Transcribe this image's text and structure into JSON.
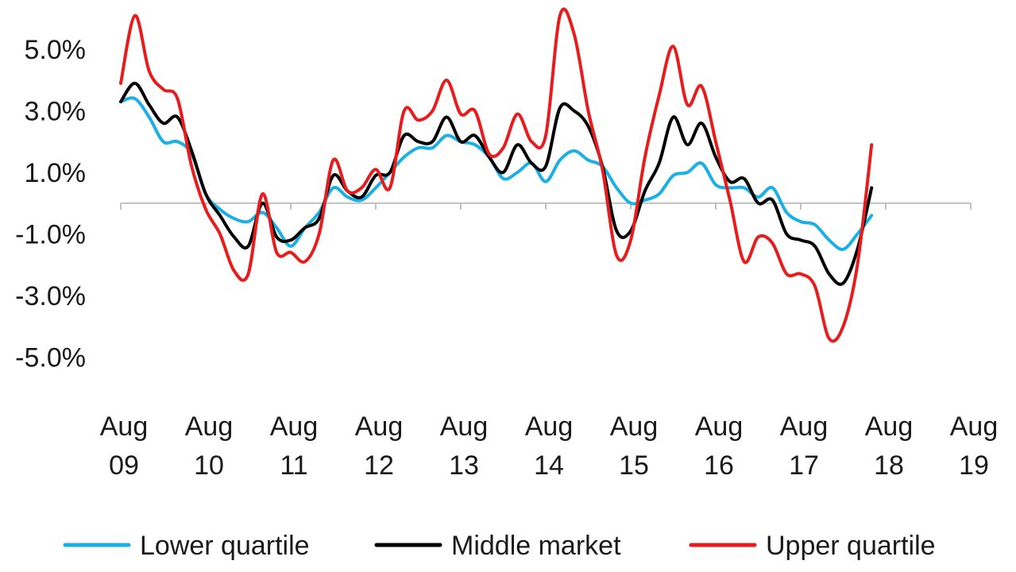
{
  "chart_data": {
    "type": "line",
    "title": "",
    "xlabel": "",
    "ylabel": "",
    "ylim": [
      -6.0,
      6.4
    ],
    "y_ticks": [
      "5.0%",
      "3.0%",
      "1.0%",
      "-1.0%",
      "-3.0%",
      "-5.0%"
    ],
    "y_tick_values": [
      5.0,
      3.0,
      1.0,
      -1.0,
      -3.0,
      -5.0
    ],
    "x_ticks": [
      {
        "line1": "Aug",
        "line2": "09",
        "value": 2009.583
      },
      {
        "line1": "Aug",
        "line2": "10",
        "value": 2010.583
      },
      {
        "line1": "Aug",
        "line2": "11",
        "value": 2011.583
      },
      {
        "line1": "Aug",
        "line2": "12",
        "value": 2012.583
      },
      {
        "line1": "Aug",
        "line2": "13",
        "value": 2013.583
      },
      {
        "line1": "Aug",
        "line2": "14",
        "value": 2014.583
      },
      {
        "line1": "Aug",
        "line2": "15",
        "value": 2015.583
      },
      {
        "line1": "Aug",
        "line2": "16",
        "value": 2016.583
      },
      {
        "line1": "Aug",
        "line2": "17",
        "value": 2017.583
      },
      {
        "line1": "Aug",
        "line2": "18",
        "value": 2018.583
      },
      {
        "line1": "Aug",
        "line2": "19",
        "value": 2019.583
      }
    ],
    "xlim": [
      2009.583,
      2019.583
    ],
    "grid": false,
    "zero_line": true,
    "legend_placement": "bottom",
    "series": [
      {
        "name": "Lower quartile",
        "color": "#1ab0e6",
        "points": [
          [
            2009.583,
            3.3
          ],
          [
            2009.75,
            3.4
          ],
          [
            2009.917,
            2.8
          ],
          [
            2010.083,
            2.0
          ],
          [
            2010.25,
            2.0
          ],
          [
            2010.417,
            1.6
          ],
          [
            2010.583,
            0.3
          ],
          [
            2010.75,
            -0.2
          ],
          [
            2010.917,
            -0.5
          ],
          [
            2011.083,
            -0.6
          ],
          [
            2011.25,
            -0.3
          ],
          [
            2011.417,
            -0.8
          ],
          [
            2011.583,
            -1.4
          ],
          [
            2011.75,
            -0.8
          ],
          [
            2011.917,
            -0.3
          ],
          [
            2012.083,
            0.5
          ],
          [
            2012.25,
            0.2
          ],
          [
            2012.417,
            0.1
          ],
          [
            2012.583,
            0.5
          ],
          [
            2012.75,
            1.0
          ],
          [
            2012.917,
            1.5
          ],
          [
            2013.083,
            1.8
          ],
          [
            2013.25,
            1.8
          ],
          [
            2013.417,
            2.2
          ],
          [
            2013.583,
            2.0
          ],
          [
            2013.75,
            1.9
          ],
          [
            2013.917,
            1.5
          ],
          [
            2014.083,
            0.8
          ],
          [
            2014.25,
            1.0
          ],
          [
            2014.417,
            1.3
          ],
          [
            2014.583,
            0.7
          ],
          [
            2014.75,
            1.4
          ],
          [
            2014.917,
            1.7
          ],
          [
            2015.083,
            1.4
          ],
          [
            2015.25,
            1.2
          ],
          [
            2015.417,
            0.5
          ],
          [
            2015.583,
            0.0
          ],
          [
            2015.75,
            0.1
          ],
          [
            2015.917,
            0.3
          ],
          [
            2016.083,
            0.9
          ],
          [
            2016.25,
            1.0
          ],
          [
            2016.417,
            1.3
          ],
          [
            2016.583,
            0.6
          ],
          [
            2016.75,
            0.5
          ],
          [
            2016.917,
            0.5
          ],
          [
            2017.083,
            0.2
          ],
          [
            2017.25,
            0.5
          ],
          [
            2017.417,
            -0.3
          ],
          [
            2017.583,
            -0.6
          ],
          [
            2017.75,
            -0.7
          ],
          [
            2017.917,
            -1.2
          ],
          [
            2018.083,
            -1.5
          ],
          [
            2018.25,
            -1.0
          ],
          [
            2018.417,
            -0.4
          ]
        ]
      },
      {
        "name": "Middle market",
        "color": "#000000",
        "points": [
          [
            2009.583,
            3.3
          ],
          [
            2009.75,
            3.9
          ],
          [
            2009.917,
            3.2
          ],
          [
            2010.083,
            2.6
          ],
          [
            2010.25,
            2.8
          ],
          [
            2010.417,
            1.7
          ],
          [
            2010.583,
            0.3
          ],
          [
            2010.75,
            -0.4
          ],
          [
            2010.917,
            -1.1
          ],
          [
            2011.083,
            -1.4
          ],
          [
            2011.25,
            0.0
          ],
          [
            2011.417,
            -1.1
          ],
          [
            2011.583,
            -1.2
          ],
          [
            2011.75,
            -0.8
          ],
          [
            2011.917,
            -0.5
          ],
          [
            2012.083,
            0.9
          ],
          [
            2012.25,
            0.4
          ],
          [
            2012.417,
            0.2
          ],
          [
            2012.583,
            0.9
          ],
          [
            2012.75,
            1.0
          ],
          [
            2012.917,
            2.2
          ],
          [
            2013.083,
            2.0
          ],
          [
            2013.25,
            2.0
          ],
          [
            2013.417,
            2.8
          ],
          [
            2013.583,
            2.0
          ],
          [
            2013.75,
            2.2
          ],
          [
            2013.917,
            1.5
          ],
          [
            2014.083,
            1.0
          ],
          [
            2014.25,
            1.9
          ],
          [
            2014.417,
            1.3
          ],
          [
            2014.583,
            1.2
          ],
          [
            2014.75,
            3.1
          ],
          [
            2014.917,
            3.0
          ],
          [
            2015.083,
            2.5
          ],
          [
            2015.25,
            1.2
          ],
          [
            2015.417,
            -0.9
          ],
          [
            2015.583,
            -0.9
          ],
          [
            2015.75,
            0.4
          ],
          [
            2015.917,
            1.3
          ],
          [
            2016.083,
            2.8
          ],
          [
            2016.25,
            1.9
          ],
          [
            2016.417,
            2.6
          ],
          [
            2016.583,
            1.5
          ],
          [
            2016.75,
            0.7
          ],
          [
            2016.917,
            0.8
          ],
          [
            2017.083,
            0.0
          ],
          [
            2017.25,
            0.1
          ],
          [
            2017.417,
            -1.0
          ],
          [
            2017.583,
            -1.2
          ],
          [
            2017.75,
            -1.4
          ],
          [
            2017.917,
            -2.3
          ],
          [
            2018.083,
            -2.6
          ],
          [
            2018.25,
            -1.5
          ],
          [
            2018.417,
            0.5
          ]
        ]
      },
      {
        "name": "Upper quartile",
        "color": "#e81c1c",
        "points": [
          [
            2009.583,
            3.9
          ],
          [
            2009.75,
            6.1
          ],
          [
            2009.917,
            4.3
          ],
          [
            2010.083,
            3.7
          ],
          [
            2010.25,
            3.4
          ],
          [
            2010.417,
            1.2
          ],
          [
            2010.583,
            -0.2
          ],
          [
            2010.75,
            -1.0
          ],
          [
            2010.917,
            -2.2
          ],
          [
            2011.083,
            -2.3
          ],
          [
            2011.25,
            0.3
          ],
          [
            2011.417,
            -1.6
          ],
          [
            2011.583,
            -1.6
          ],
          [
            2011.75,
            -1.9
          ],
          [
            2011.917,
            -1.0
          ],
          [
            2012.083,
            1.4
          ],
          [
            2012.25,
            0.4
          ],
          [
            2012.417,
            0.5
          ],
          [
            2012.583,
            1.1
          ],
          [
            2012.75,
            0.5
          ],
          [
            2012.917,
            3.0
          ],
          [
            2013.083,
            2.7
          ],
          [
            2013.25,
            3.0
          ],
          [
            2013.417,
            4.0
          ],
          [
            2013.583,
            2.9
          ],
          [
            2013.75,
            3.0
          ],
          [
            2013.917,
            1.6
          ],
          [
            2014.083,
            1.8
          ],
          [
            2014.25,
            2.9
          ],
          [
            2014.417,
            2.0
          ],
          [
            2014.583,
            2.2
          ],
          [
            2014.75,
            6.1
          ],
          [
            2014.917,
            5.5
          ],
          [
            2015.083,
            3.0
          ],
          [
            2015.25,
            1.1
          ],
          [
            2015.417,
            -1.7
          ],
          [
            2015.583,
            -1.2
          ],
          [
            2015.75,
            1.5
          ],
          [
            2015.917,
            3.5
          ],
          [
            2016.083,
            5.1
          ],
          [
            2016.25,
            3.2
          ],
          [
            2016.417,
            3.8
          ],
          [
            2016.583,
            2.0
          ],
          [
            2016.75,
            0.1
          ],
          [
            2016.917,
            -1.9
          ],
          [
            2017.083,
            -1.1
          ],
          [
            2017.25,
            -1.3
          ],
          [
            2017.417,
            -2.3
          ],
          [
            2017.583,
            -2.3
          ],
          [
            2017.75,
            -2.7
          ],
          [
            2017.917,
            -4.4
          ],
          [
            2018.083,
            -4.0
          ],
          [
            2018.25,
            -2.0
          ],
          [
            2018.417,
            1.9
          ]
        ]
      }
    ]
  }
}
